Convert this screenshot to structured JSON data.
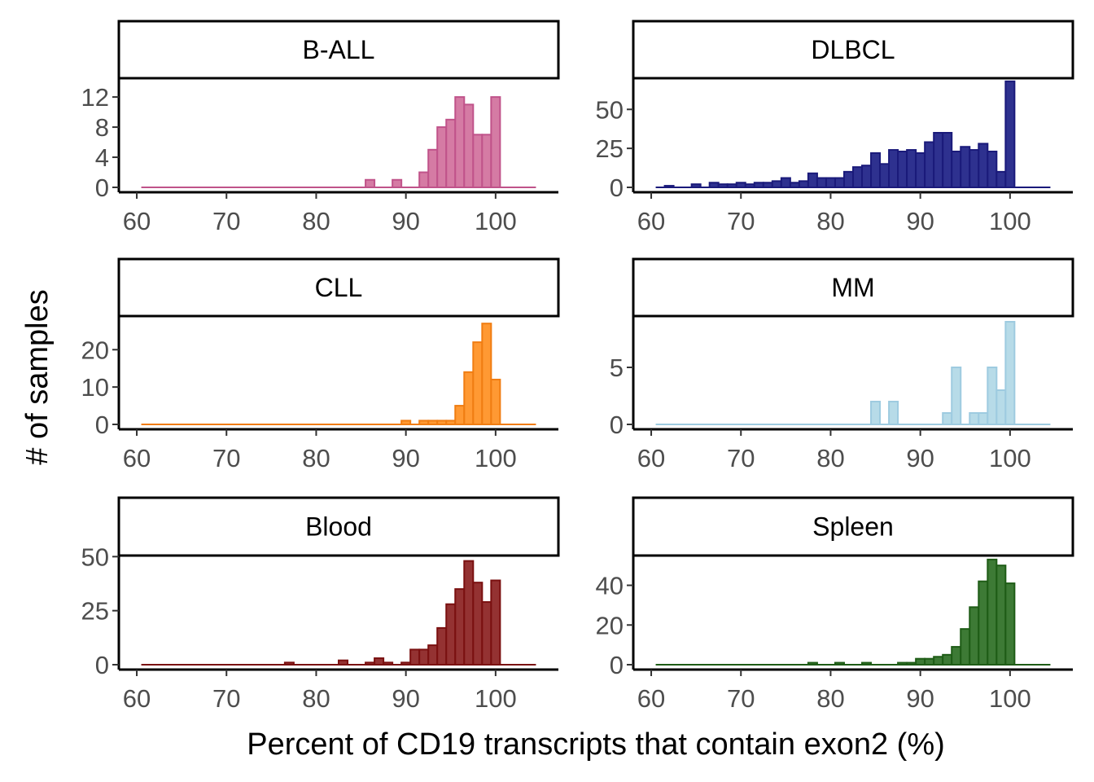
{
  "figure": {
    "ylabel": "# of samples",
    "xlabel": "Percent of CD19 transcripts that contain exon2 (%)"
  },
  "chart_data": [
    {
      "type": "bar",
      "title": "B-ALL",
      "color_fill": "#d57ba4",
      "color_stroke": "#c0538a",
      "xlim": [
        58,
        107
      ],
      "ylim": [
        0,
        14.5
      ],
      "xticks": [
        60,
        70,
        80,
        90,
        100
      ],
      "yticks": [
        0,
        4,
        8,
        12
      ],
      "bin_width": 1,
      "x_range": [
        61,
        104
      ],
      "bars": [
        {
          "x": 86,
          "y": 1
        },
        {
          "x": 89,
          "y": 1
        },
        {
          "x": 92,
          "y": 2
        },
        {
          "x": 93,
          "y": 5
        },
        {
          "x": 94,
          "y": 8
        },
        {
          "x": 95,
          "y": 9
        },
        {
          "x": 96,
          "y": 12
        },
        {
          "x": 97,
          "y": 11
        },
        {
          "x": 98,
          "y": 7
        },
        {
          "x": 99,
          "y": 7
        },
        {
          "x": 100,
          "y": 12
        }
      ]
    },
    {
      "type": "bar",
      "title": "DLBCL",
      "color_fill": "#2e318f",
      "color_stroke": "#1a1a7a",
      "xlim": [
        58,
        107
      ],
      "ylim": [
        0,
        70
      ],
      "xticks": [
        60,
        70,
        80,
        90,
        100
      ],
      "yticks": [
        0,
        25,
        50
      ],
      "bin_width": 1,
      "x_range": [
        61,
        104
      ],
      "bars": [
        {
          "x": 62,
          "y": 1
        },
        {
          "x": 65,
          "y": 2
        },
        {
          "x": 67,
          "y": 3
        },
        {
          "x": 68,
          "y": 2
        },
        {
          "x": 69,
          "y": 2
        },
        {
          "x": 70,
          "y": 3
        },
        {
          "x": 71,
          "y": 2
        },
        {
          "x": 72,
          "y": 3
        },
        {
          "x": 73,
          "y": 3
        },
        {
          "x": 74,
          "y": 4
        },
        {
          "x": 75,
          "y": 6
        },
        {
          "x": 76,
          "y": 3
        },
        {
          "x": 77,
          "y": 4
        },
        {
          "x": 78,
          "y": 9
        },
        {
          "x": 79,
          "y": 6
        },
        {
          "x": 80,
          "y": 6
        },
        {
          "x": 81,
          "y": 6
        },
        {
          "x": 82,
          "y": 10
        },
        {
          "x": 83,
          "y": 13
        },
        {
          "x": 84,
          "y": 14
        },
        {
          "x": 85,
          "y": 22
        },
        {
          "x": 86,
          "y": 15
        },
        {
          "x": 87,
          "y": 24
        },
        {
          "x": 88,
          "y": 23
        },
        {
          "x": 89,
          "y": 24
        },
        {
          "x": 90,
          "y": 22
        },
        {
          "x": 91,
          "y": 29
        },
        {
          "x": 92,
          "y": 35
        },
        {
          "x": 93,
          "y": 35
        },
        {
          "x": 94,
          "y": 23
        },
        {
          "x": 95,
          "y": 26
        },
        {
          "x": 96,
          "y": 24
        },
        {
          "x": 97,
          "y": 28
        },
        {
          "x": 98,
          "y": 23
        },
        {
          "x": 99,
          "y": 10
        },
        {
          "x": 100,
          "y": 68
        }
      ]
    },
    {
      "type": "bar",
      "title": "CLL",
      "color_fill": "#ff9933",
      "color_stroke": "#f07d12",
      "xlim": [
        58,
        107
      ],
      "ylim": [
        0,
        29
      ],
      "xticks": [
        60,
        70,
        80,
        90,
        100
      ],
      "yticks": [
        0,
        10,
        20
      ],
      "bin_width": 1,
      "x_range": [
        61,
        104
      ],
      "bars": [
        {
          "x": 90,
          "y": 1
        },
        {
          "x": 92,
          "y": 1
        },
        {
          "x": 93,
          "y": 1
        },
        {
          "x": 94,
          "y": 1
        },
        {
          "x": 95,
          "y": 1
        },
        {
          "x": 96,
          "y": 5
        },
        {
          "x": 97,
          "y": 14
        },
        {
          "x": 98,
          "y": 22
        },
        {
          "x": 99,
          "y": 27
        },
        {
          "x": 100,
          "y": 12
        }
      ]
    },
    {
      "type": "bar",
      "title": "MM",
      "color_fill": "#b7dbe8",
      "color_stroke": "#9ecbe0",
      "xlim": [
        58,
        107
      ],
      "ylim": [
        0,
        9.5
      ],
      "xticks": [
        60,
        70,
        80,
        90,
        100
      ],
      "yticks": [
        0,
        5
      ],
      "bin_width": 1,
      "x_range": [
        61,
        104
      ],
      "bars": [
        {
          "x": 85,
          "y": 2
        },
        {
          "x": 87,
          "y": 2
        },
        {
          "x": 93,
          "y": 1
        },
        {
          "x": 94,
          "y": 5
        },
        {
          "x": 96,
          "y": 1
        },
        {
          "x": 97,
          "y": 1
        },
        {
          "x": 98,
          "y": 5
        },
        {
          "x": 99,
          "y": 3
        },
        {
          "x": 100,
          "y": 9
        }
      ]
    },
    {
      "type": "bar",
      "title": "Blood",
      "color_fill": "#943232",
      "color_stroke": "#7a1010",
      "xlim": [
        58,
        107
      ],
      "ylim": [
        0,
        50.5
      ],
      "xticks": [
        60,
        70,
        80,
        90,
        100
      ],
      "yticks": [
        0,
        25,
        50
      ],
      "bin_width": 1,
      "x_range": [
        61,
        104
      ],
      "bars": [
        {
          "x": 77,
          "y": 1
        },
        {
          "x": 83,
          "y": 2
        },
        {
          "x": 86,
          "y": 1
        },
        {
          "x": 87,
          "y": 3
        },
        {
          "x": 88,
          "y": 1
        },
        {
          "x": 90,
          "y": 1
        },
        {
          "x": 91,
          "y": 7
        },
        {
          "x": 92,
          "y": 7
        },
        {
          "x": 93,
          "y": 9
        },
        {
          "x": 94,
          "y": 17
        },
        {
          "x": 95,
          "y": 28
        },
        {
          "x": 96,
          "y": 35
        },
        {
          "x": 97,
          "y": 48
        },
        {
          "x": 98,
          "y": 38
        },
        {
          "x": 99,
          "y": 29
        },
        {
          "x": 100,
          "y": 39
        }
      ]
    },
    {
      "type": "bar",
      "title": "Spleen",
      "color_fill": "#3d7a35",
      "color_stroke": "#1e5c16",
      "xlim": [
        58,
        107
      ],
      "ylim": [
        0,
        55
      ],
      "xticks": [
        60,
        70,
        80,
        90,
        100
      ],
      "yticks": [
        0,
        20,
        40
      ],
      "bin_width": 1,
      "x_range": [
        61,
        104
      ],
      "bars": [
        {
          "x": 78,
          "y": 1
        },
        {
          "x": 81,
          "y": 1
        },
        {
          "x": 84,
          "y": 1
        },
        {
          "x": 88,
          "y": 1
        },
        {
          "x": 89,
          "y": 1
        },
        {
          "x": 90,
          "y": 3
        },
        {
          "x": 91,
          "y": 3
        },
        {
          "x": 92,
          "y": 4
        },
        {
          "x": 93,
          "y": 5
        },
        {
          "x": 94,
          "y": 9
        },
        {
          "x": 95,
          "y": 18
        },
        {
          "x": 96,
          "y": 29
        },
        {
          "x": 97,
          "y": 42
        },
        {
          "x": 98,
          "y": 53
        },
        {
          "x": 99,
          "y": 50
        },
        {
          "x": 100,
          "y": 41
        }
      ]
    }
  ]
}
